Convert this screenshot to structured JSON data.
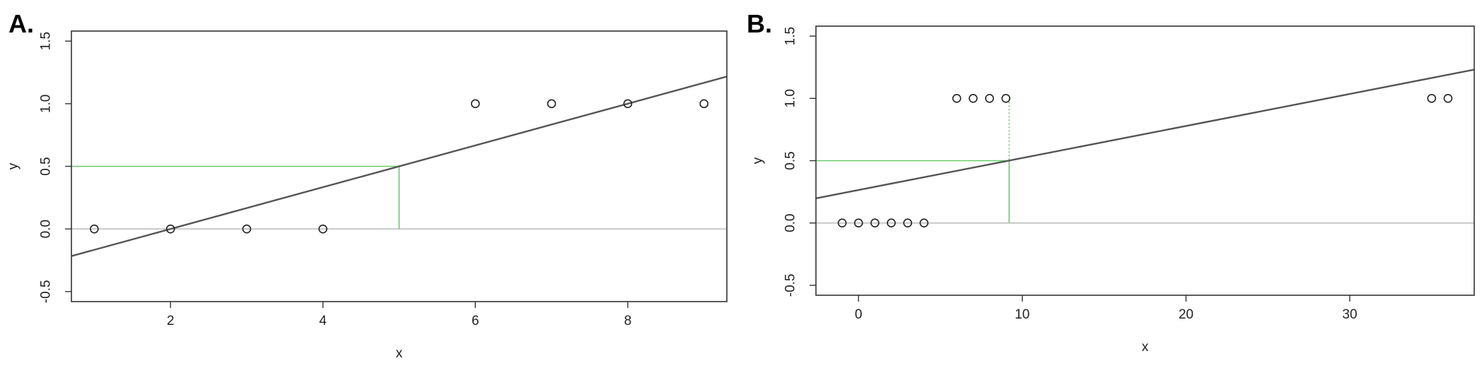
{
  "chart_data": [
    {
      "panel_label": "A.",
      "type": "scatter",
      "xlabel": "x",
      "ylabel": "y",
      "xlim": [
        0.7,
        9.3
      ],
      "ylim": [
        -0.58,
        1.58
      ],
      "x_ticks": [
        2,
        4,
        6,
        8
      ],
      "y_ticks": [
        -0.5,
        0.0,
        0.5,
        1.0,
        1.5
      ],
      "x_tick_labels": [
        "2",
        "4",
        "6",
        "8"
      ],
      "y_tick_labels": [
        "-0.5",
        "0.0",
        "0.5",
        "1.0",
        "1.5"
      ],
      "points": [
        {
          "x": 1,
          "y": 0
        },
        {
          "x": 2,
          "y": 0
        },
        {
          "x": 3,
          "y": 0
        },
        {
          "x": 4,
          "y": 0
        },
        {
          "x": 6,
          "y": 1
        },
        {
          "x": 7,
          "y": 1
        },
        {
          "x": 8,
          "y": 1
        },
        {
          "x": 9,
          "y": 1
        }
      ],
      "fit_line": {
        "slope": 0.1667,
        "intercept": -0.3333
      },
      "reference_line_y": 0,
      "threshold": {
        "x": 5.0,
        "y": 0.5,
        "color": "#66cc66"
      },
      "line_color": "#555555",
      "reference_color": "#bbbbbb"
    },
    {
      "panel_label": "B.",
      "type": "scatter",
      "xlabel": "x",
      "ylabel": "y",
      "xlim": [
        -2.6,
        37.6
      ],
      "ylim": [
        -0.58,
        1.58
      ],
      "x_ticks": [
        0,
        10,
        20,
        30
      ],
      "y_ticks": [
        -0.5,
        0.0,
        0.5,
        1.0,
        1.5
      ],
      "x_tick_labels": [
        "0",
        "10",
        "20",
        "30"
      ],
      "y_tick_labels": [
        "-0.5",
        "0.0",
        "0.5",
        "1.0",
        "1.5"
      ],
      "points": [
        {
          "x": -1,
          "y": 0
        },
        {
          "x": 0,
          "y": 0
        },
        {
          "x": 1,
          "y": 0
        },
        {
          "x": 2,
          "y": 0
        },
        {
          "x": 3,
          "y": 0
        },
        {
          "x": 4,
          "y": 0
        },
        {
          "x": 6,
          "y": 1
        },
        {
          "x": 7,
          "y": 1
        },
        {
          "x": 8,
          "y": 1
        },
        {
          "x": 9,
          "y": 1
        },
        {
          "x": 35,
          "y": 1
        },
        {
          "x": 36,
          "y": 1
        }
      ],
      "fit_line": {
        "slope": 0.0257,
        "intercept": 0.2646
      },
      "reference_line_y": 0,
      "threshold": {
        "x": 9.2,
        "y": 0.5,
        "color": "#66cc66",
        "dotted_to_y": 1.0
      },
      "line_color": "#555555",
      "reference_color": "#bbbbbb"
    }
  ]
}
